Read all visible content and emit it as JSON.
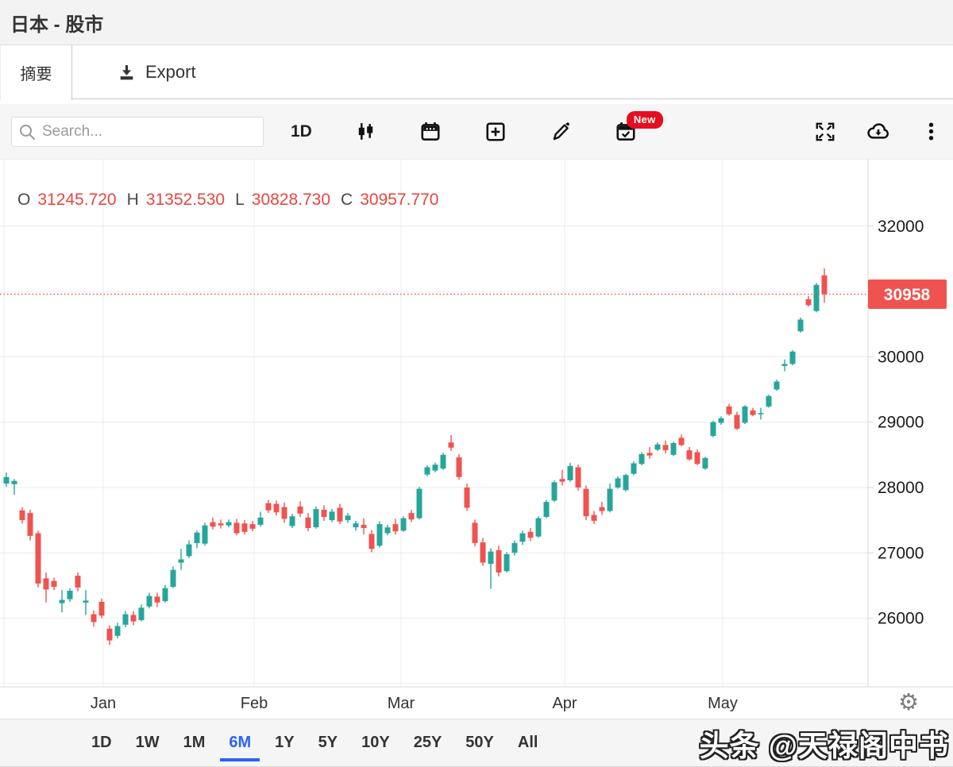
{
  "header": {
    "title": "日本 - 股市"
  },
  "tabs": {
    "summary": "摘要",
    "export": "Export"
  },
  "toolbar": {
    "search_placeholder": "Search...",
    "interval": "1D",
    "new_badge": "New",
    "icons": [
      "search-icon",
      "candlestick-chart-icon",
      "calendar-icon",
      "add-square-icon",
      "pencil-icon",
      "calendar-check-icon",
      "fullscreen-icon",
      "cloud-download-icon",
      "kebab-menu-icon"
    ]
  },
  "legend": {
    "items": [
      {
        "label": "O",
        "value": "31245.720"
      },
      {
        "label": "H",
        "value": "31352.530"
      },
      {
        "label": "L",
        "value": "30828.730"
      },
      {
        "label": "C",
        "value": "30957.770"
      }
    ]
  },
  "price_axis": {
    "current_price_label": "30958"
  },
  "range_buttons": [
    "1D",
    "1W",
    "1M",
    "6M",
    "1Y",
    "5Y",
    "10Y",
    "25Y",
    "50Y",
    "All"
  ],
  "active_range": "6M",
  "watermark": "头条 @天禄阁中书",
  "colors": {
    "up": "#26a69a",
    "down": "#ef5350",
    "accent_blue": "#2962ff",
    "badge_red": "#ef5350"
  },
  "chart_data": {
    "type": "candlestick",
    "title": "日本 - 股市",
    "ylim": [
      24950,
      33030
    ],
    "ygrid": [
      25000,
      26000,
      27000,
      28000,
      29000,
      30000,
      31000,
      32000
    ],
    "ytick_labels": [
      32000,
      30000,
      29000,
      28000,
      27000,
      26000
    ],
    "current_price": 30957.77,
    "month_ticks": [
      {
        "label": "Jan",
        "index": 12.2
      },
      {
        "label": "Feb",
        "index": 31.2
      },
      {
        "label": "Mar",
        "index": 49.7
      },
      {
        "label": "Apr",
        "index": 70.3
      },
      {
        "label": "May",
        "index": 90.2
      }
    ],
    "candles": [
      [
        28060,
        28230,
        28010,
        28160
      ],
      [
        28050,
        28130,
        27890,
        28100
      ],
      [
        27650,
        27700,
        27450,
        27500
      ],
      [
        27610,
        27660,
        27190,
        27260
      ],
      [
        27300,
        27340,
        26470,
        26530
      ],
      [
        26610,
        26700,
        26240,
        26440
      ],
      [
        26570,
        26620,
        26430,
        26480
      ],
      [
        26230,
        26430,
        26090,
        26280
      ],
      [
        26290,
        26460,
        26250,
        26420
      ],
      [
        26650,
        26700,
        26410,
        26470
      ],
      [
        26240,
        26430,
        26050,
        26270
      ],
      [
        26060,
        26120,
        25870,
        25940
      ],
      [
        26250,
        26300,
        26000,
        26040
      ],
      [
        25840,
        25890,
        25590,
        25660
      ],
      [
        25730,
        25930,
        25690,
        25880
      ],
      [
        25900,
        26110,
        25860,
        26060
      ],
      [
        26050,
        26110,
        25890,
        25950
      ],
      [
        25970,
        26210,
        25950,
        26160
      ],
      [
        26180,
        26390,
        26150,
        26340
      ],
      [
        26330,
        26390,
        26170,
        26240
      ],
      [
        26260,
        26510,
        26240,
        26460
      ],
      [
        26480,
        26790,
        26460,
        26740
      ],
      [
        26850,
        27060,
        26740,
        26900
      ],
      [
        26950,
        27190,
        26920,
        27130
      ],
      [
        27150,
        27340,
        27070,
        27310
      ],
      [
        27140,
        27460,
        27110,
        27420
      ],
      [
        27470,
        27540,
        27360,
        27400
      ],
      [
        27450,
        27510,
        27370,
        27420
      ],
      [
        27420,
        27510,
        27390,
        27470
      ],
      [
        27460,
        27520,
        27270,
        27300
      ],
      [
        27450,
        27500,
        27280,
        27320
      ],
      [
        27440,
        27490,
        27330,
        27370
      ],
      [
        27430,
        27630,
        27400,
        27540
      ],
      [
        27760,
        27810,
        27610,
        27650
      ],
      [
        27750,
        27800,
        27570,
        27620
      ],
      [
        27700,
        27770,
        27460,
        27520
      ],
      [
        27410,
        27600,
        27380,
        27560
      ],
      [
        27710,
        27790,
        27550,
        27600
      ],
      [
        27540,
        27610,
        27330,
        27380
      ],
      [
        27390,
        27710,
        27370,
        27670
      ],
      [
        27660,
        27730,
        27490,
        27550
      ],
      [
        27500,
        27670,
        27470,
        27630
      ],
      [
        27690,
        27750,
        27440,
        27480
      ],
      [
        27500,
        27610,
        27460,
        27570
      ],
      [
        27390,
        27490,
        27340,
        27450
      ],
      [
        27430,
        27530,
        27280,
        27380
      ],
      [
        27290,
        27350,
        27010,
        27060
      ],
      [
        27110,
        27480,
        27080,
        27440
      ],
      [
        27300,
        27430,
        27270,
        27390
      ],
      [
        27440,
        27520,
        27280,
        27330
      ],
      [
        27340,
        27560,
        27320,
        27530
      ],
      [
        27610,
        27660,
        27470,
        27510
      ],
      [
        27530,
        28010,
        27510,
        27980
      ],
      [
        28200,
        28340,
        28170,
        28310
      ],
      [
        28260,
        28380,
        28230,
        28350
      ],
      [
        28290,
        28530,
        28270,
        28500
      ],
      [
        28690,
        28800,
        28560,
        28610
      ],
      [
        28460,
        28510,
        28120,
        28160
      ],
      [
        28000,
        28060,
        27640,
        27690
      ],
      [
        27460,
        27510,
        27100,
        27150
      ],
      [
        27160,
        27230,
        26800,
        26850
      ],
      [
        26830,
        27070,
        26450,
        27020
      ],
      [
        27040,
        27110,
        26640,
        26700
      ],
      [
        26720,
        27010,
        26700,
        26980
      ],
      [
        27000,
        27190,
        26960,
        27150
      ],
      [
        27170,
        27340,
        27120,
        27300
      ],
      [
        27320,
        27380,
        27180,
        27230
      ],
      [
        27250,
        27560,
        27230,
        27530
      ],
      [
        27550,
        27810,
        27530,
        27780
      ],
      [
        27800,
        28110,
        27780,
        28080
      ],
      [
        28130,
        28270,
        28030,
        28090
      ],
      [
        28110,
        28380,
        28090,
        28330
      ],
      [
        28310,
        28350,
        27950,
        28000
      ],
      [
        27980,
        28030,
        27500,
        27560
      ],
      [
        27580,
        27640,
        27440,
        27490
      ],
      [
        27700,
        27780,
        27580,
        27640
      ],
      [
        27640,
        28060,
        27620,
        27980
      ],
      [
        28000,
        28170,
        27980,
        28140
      ],
      [
        27960,
        28210,
        27940,
        28190
      ],
      [
        28210,
        28400,
        28190,
        28370
      ],
      [
        28360,
        28540,
        28340,
        28510
      ],
      [
        28530,
        28620,
        28440,
        28490
      ],
      [
        28580,
        28690,
        28560,
        28660
      ],
      [
        28650,
        28720,
        28520,
        28570
      ],
      [
        28500,
        28700,
        28480,
        28680
      ],
      [
        28760,
        28810,
        28630,
        28650
      ],
      [
        28570,
        28620,
        28410,
        28430
      ],
      [
        28540,
        28580,
        28340,
        28360
      ],
      [
        28290,
        28470,
        28270,
        28450
      ],
      [
        28790,
        29020,
        28770,
        29000
      ],
      [
        28990,
        29090,
        28960,
        29060
      ],
      [
        29240,
        29280,
        29100,
        29120
      ],
      [
        29110,
        29160,
        28880,
        28900
      ],
      [
        28990,
        29260,
        28970,
        29240
      ],
      [
        29180,
        29220,
        29090,
        29110
      ],
      [
        29120,
        29220,
        29040,
        29140
      ],
      [
        29240,
        29420,
        29220,
        29400
      ],
      [
        29500,
        29650,
        29480,
        29620
      ],
      [
        29860,
        29960,
        29780,
        29890
      ],
      [
        29890,
        30100,
        29870,
        30080
      ],
      [
        30390,
        30600,
        30370,
        30570
      ],
      [
        30880,
        30930,
        30770,
        30790
      ],
      [
        30700,
        31130,
        30680,
        31100
      ],
      [
        31245.72,
        31352.53,
        30828.73,
        30957.77
      ]
    ]
  }
}
